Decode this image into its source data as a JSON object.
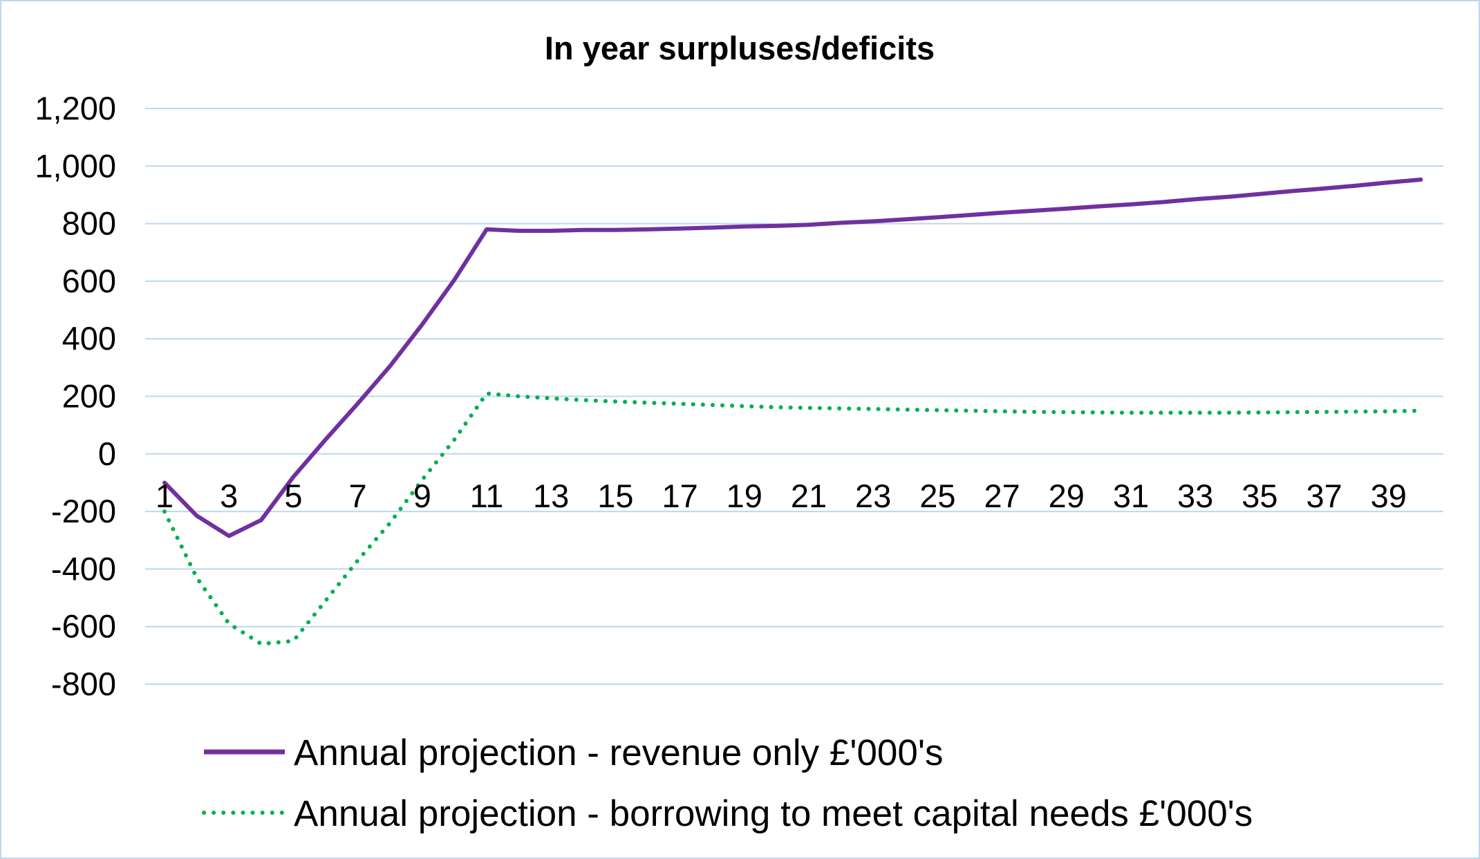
{
  "chart_data": {
    "type": "line",
    "title": "In year surpluses/deficits",
    "xlabel": "",
    "ylabel": "",
    "ylim": [
      -800,
      1200
    ],
    "ytick_step": 200,
    "x": [
      1,
      2,
      3,
      4,
      5,
      6,
      7,
      8,
      9,
      10,
      11,
      12,
      13,
      14,
      15,
      16,
      17,
      18,
      19,
      20,
      21,
      22,
      23,
      24,
      25,
      26,
      27,
      28,
      29,
      30,
      31,
      32,
      33,
      34,
      35,
      36,
      37,
      38,
      39,
      40
    ],
    "xtick_labels": [
      "1",
      "3",
      "5",
      "7",
      "9",
      "11",
      "13",
      "15",
      "17",
      "19",
      "21",
      "23",
      "25",
      "27",
      "29",
      "31",
      "33",
      "35",
      "37",
      "39"
    ],
    "grid": true,
    "legend_position": "bottom",
    "series": [
      {
        "name": "Annual projection - revenue only £'000's",
        "color": "#7030a0",
        "style": "solid",
        "values": [
          -100,
          -215,
          -285,
          -230,
          -80,
          50,
          175,
          305,
          450,
          605,
          780,
          775,
          775,
          778,
          778,
          780,
          783,
          786,
          790,
          792,
          796,
          803,
          808,
          815,
          822,
          830,
          838,
          845,
          852,
          860,
          867,
          875,
          885,
          893,
          903,
          913,
          922,
          932,
          943,
          953
        ]
      },
      {
        "name": "Annual projection - borrowing to meet capital needs £'000's",
        "color": "#00b050",
        "style": "dotted",
        "values": [
          -200,
          -430,
          -590,
          -660,
          -650,
          -510,
          -370,
          -240,
          -90,
          50,
          210,
          200,
          193,
          187,
          182,
          178,
          174,
          170,
          166,
          162,
          160,
          158,
          156,
          154,
          152,
          150,
          148,
          146,
          145,
          144,
          143,
          143,
          143,
          143,
          144,
          145,
          146,
          147,
          148,
          150
        ]
      }
    ]
  }
}
